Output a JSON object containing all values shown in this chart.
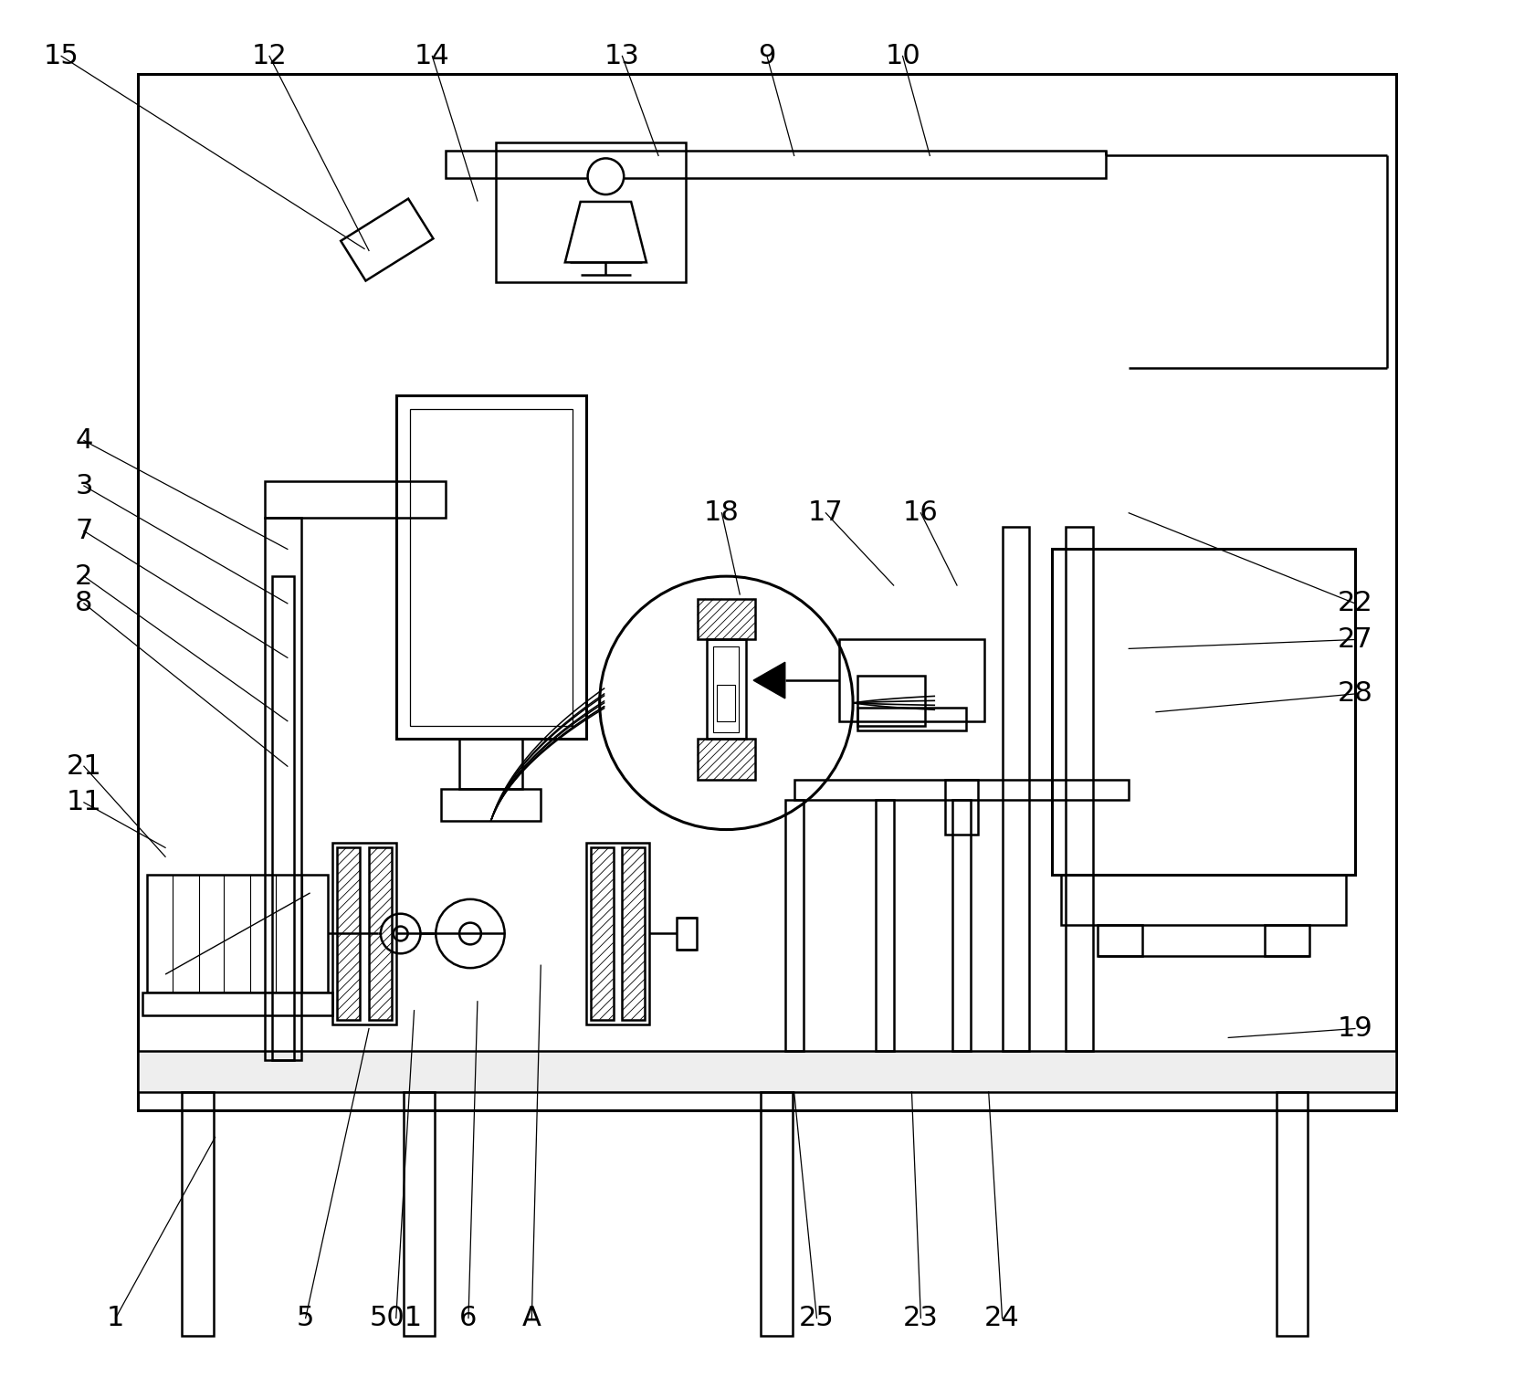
{
  "bg": "#ffffff",
  "lc": "#000000",
  "lw": 1.8,
  "lw2": 2.2,
  "fig_w": 16.69,
  "fig_h": 15.07,
  "annotations": [
    [
      "1",
      120,
      1450,
      230,
      1250
    ],
    [
      "2",
      85,
      630,
      310,
      790
    ],
    [
      "3",
      85,
      530,
      310,
      660
    ],
    [
      "4",
      85,
      480,
      310,
      600
    ],
    [
      "7",
      85,
      580,
      310,
      720
    ],
    [
      "8",
      85,
      660,
      310,
      840
    ],
    [
      "11",
      85,
      880,
      175,
      930
    ],
    [
      "21",
      85,
      840,
      175,
      940
    ],
    [
      "5",
      330,
      1450,
      400,
      1130
    ],
    [
      "501",
      430,
      1450,
      450,
      1110
    ],
    [
      "6",
      510,
      1450,
      520,
      1100
    ],
    [
      "A",
      580,
      1450,
      590,
      1060
    ],
    [
      "12",
      290,
      55,
      400,
      270
    ],
    [
      "14",
      470,
      55,
      520,
      215
    ],
    [
      "13",
      680,
      55,
      720,
      165
    ],
    [
      "15",
      60,
      55,
      395,
      268
    ],
    [
      "9",
      840,
      55,
      870,
      165
    ],
    [
      "10",
      990,
      55,
      1020,
      165
    ],
    [
      "22",
      1490,
      660,
      1240,
      560
    ],
    [
      "27",
      1490,
      700,
      1240,
      710
    ],
    [
      "28",
      1490,
      760,
      1270,
      780
    ],
    [
      "19",
      1490,
      1130,
      1350,
      1140
    ],
    [
      "16",
      1010,
      560,
      1050,
      640
    ],
    [
      "17",
      905,
      560,
      980,
      640
    ],
    [
      "18",
      790,
      560,
      810,
      650
    ],
    [
      "25",
      895,
      1450,
      870,
      1200
    ],
    [
      "23",
      1010,
      1450,
      1000,
      1200
    ],
    [
      "24",
      1100,
      1450,
      1085,
      1200
    ]
  ]
}
